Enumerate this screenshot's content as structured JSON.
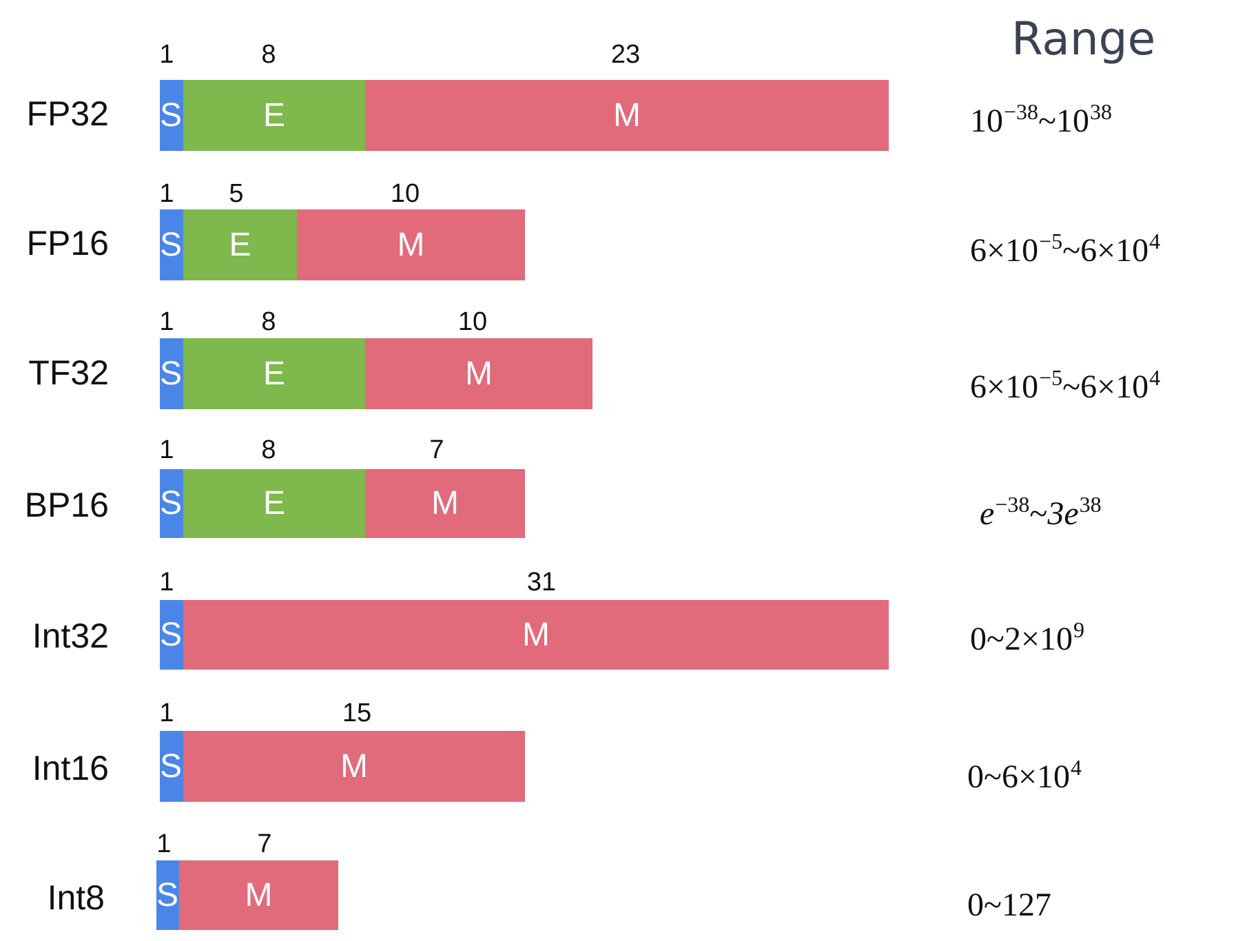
{
  "range_title": "Range",
  "colors": {
    "sign": "#4a86e8",
    "exponent": "#7fb84d",
    "mantissa": "#e16a7b"
  },
  "formats": [
    {
      "name": "FP32",
      "sign_bits": "1",
      "exp_bits": "8",
      "mant_bits": "23",
      "sign_label": "S",
      "exp_label": "E",
      "mant_label": "M",
      "range": {
        "a": "10",
        "a_sup": "−38",
        "sep": "~",
        "b": "10",
        "b_sup": "38"
      }
    },
    {
      "name": "FP16",
      "sign_bits": "1",
      "exp_bits": "5",
      "mant_bits": "10",
      "sign_label": "S",
      "exp_label": "E",
      "mant_label": "M",
      "range": {
        "a": "6×10",
        "a_sup": "−5",
        "sep": "~",
        "b": "6×10",
        "b_sup": "4"
      }
    },
    {
      "name": "TF32",
      "sign_bits": "1",
      "exp_bits": "8",
      "mant_bits": "10",
      "sign_label": "S",
      "exp_label": "E",
      "mant_label": "M",
      "range": {
        "a": "6×10",
        "a_sup": "−5",
        "sep": "~",
        "b": "6×10",
        "b_sup": "4"
      }
    },
    {
      "name": "BP16",
      "sign_bits": "1",
      "exp_bits": "8",
      "mant_bits": "7",
      "sign_label": "S",
      "exp_label": "E",
      "mant_label": "M",
      "range": {
        "a": "e",
        "a_sup": "−38",
        "sep": "~",
        "b": "3e",
        "b_sup": "38"
      }
    },
    {
      "name": "Int32",
      "sign_bits": "1",
      "mant_bits": "31",
      "sign_label": "S",
      "mant_label": "M",
      "range": {
        "a": "0~2×10",
        "a_sup": "9"
      }
    },
    {
      "name": "Int16",
      "sign_bits": "1",
      "mant_bits": "15",
      "sign_label": "S",
      "mant_label": "M",
      "range": {
        "a": "0~6×10",
        "a_sup": "4"
      }
    },
    {
      "name": "Int8",
      "sign_bits": "1",
      "mant_bits": "7",
      "sign_label": "S",
      "mant_label": "M",
      "range": {
        "a": "0~127"
      }
    }
  ]
}
